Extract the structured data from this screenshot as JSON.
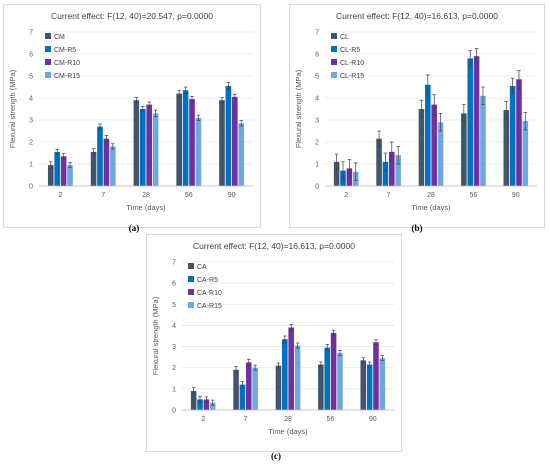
{
  "chart_data": [
    {
      "type": "bar",
      "title": "Current effect: F(12, 40)=20.547, p=0.0000",
      "xlabel": "Time (days)",
      "ylabel": "Flexural strength (MPa)",
      "ylim": [
        0,
        7
      ],
      "yticks": [
        0,
        1,
        2,
        3,
        4,
        5,
        6,
        7
      ],
      "grid": true,
      "legend_position": "top-left",
      "categories": [
        "2",
        "7",
        "28",
        "56",
        "90"
      ],
      "series": [
        {
          "name": "CM",
          "color": "#44546a",
          "values": [
            0.95,
            1.55,
            3.9,
            4.2,
            3.9
          ],
          "errors": [
            0.15,
            0.15,
            0.12,
            0.15,
            0.12
          ]
        },
        {
          "name": "CM-R5",
          "color": "#0070c0",
          "values": [
            1.55,
            2.7,
            3.5,
            4.35,
            4.55
          ],
          "errors": [
            0.12,
            0.12,
            0.12,
            0.15,
            0.15
          ]
        },
        {
          "name": "CM-R10",
          "color": "#7030a0",
          "values": [
            1.35,
            2.15,
            3.7,
            3.95,
            4.05
          ],
          "errors": [
            0.12,
            0.15,
            0.12,
            0.12,
            0.12
          ]
        },
        {
          "name": "CM-R15",
          "color": "#6fa8dc",
          "values": [
            0.95,
            1.8,
            3.3,
            3.1,
            2.85
          ],
          "errors": [
            0.12,
            0.12,
            0.15,
            0.12,
            0.12
          ]
        }
      ],
      "caption": "(a)"
    },
    {
      "type": "bar",
      "title": "Current effect: F(12, 40)=16.613, p=0.0000",
      "xlabel": "Time (days)",
      "ylabel": "Flexural strength (MPa)",
      "ylim": [
        0,
        7
      ],
      "yticks": [
        0,
        1,
        2,
        3,
        4,
        5,
        6,
        7
      ],
      "grid": true,
      "legend_position": "top-left",
      "categories": [
        "2",
        "7",
        "28",
        "56",
        "90"
      ],
      "series": [
        {
          "name": "CL",
          "color": "#44546a",
          "values": [
            1.1,
            2.15,
            3.5,
            3.3,
            3.45
          ],
          "errors": [
            0.35,
            0.35,
            0.4,
            0.4,
            0.4
          ]
        },
        {
          "name": "CL-R5",
          "color": "#0070c0",
          "values": [
            0.7,
            1.1,
            4.6,
            5.8,
            4.55
          ],
          "errors": [
            0.4,
            0.4,
            0.45,
            0.35,
            0.35
          ]
        },
        {
          "name": "CL-R10",
          "color": "#7030a0",
          "values": [
            0.8,
            1.55,
            3.7,
            5.9,
            4.85
          ],
          "errors": [
            0.4,
            0.45,
            0.45,
            0.35,
            0.4
          ]
        },
        {
          "name": "CL-R15",
          "color": "#6fa8dc",
          "values": [
            0.65,
            1.4,
            2.9,
            4.1,
            2.95
          ],
          "errors": [
            0.4,
            0.4,
            0.4,
            0.4,
            0.4
          ]
        }
      ],
      "caption": "(b)"
    },
    {
      "type": "bar",
      "title": "Current effect: F(12, 40)=16.613, p=0.0000",
      "xlabel": "Time (days)",
      "ylabel": "Flexural strength (MPa)",
      "ylim": [
        0,
        7
      ],
      "yticks": [
        0,
        1,
        2,
        3,
        4,
        5,
        6,
        7
      ],
      "grid": true,
      "legend_position": "top-left",
      "categories": [
        "2",
        "7",
        "28",
        "56",
        "90"
      ],
      "series": [
        {
          "name": "CA",
          "color": "#44546a",
          "values": [
            0.9,
            1.9,
            2.1,
            2.15,
            2.35
          ],
          "errors": [
            0.15,
            0.15,
            0.12,
            0.12,
            0.12
          ]
        },
        {
          "name": "CA-R5",
          "color": "#0070c0",
          "values": [
            0.5,
            1.2,
            3.35,
            2.95,
            2.15
          ],
          "errors": [
            0.15,
            0.15,
            0.15,
            0.15,
            0.12
          ]
        },
        {
          "name": "CA-R10",
          "color": "#7030a0",
          "values": [
            0.5,
            2.25,
            3.9,
            3.65,
            3.2
          ],
          "errors": [
            0.12,
            0.15,
            0.15,
            0.12,
            0.12
          ]
        },
        {
          "name": "CA-R15",
          "color": "#6fa8dc",
          "values": [
            0.35,
            2.0,
            3.05,
            2.7,
            2.45
          ],
          "errors": [
            0.12,
            0.12,
            0.12,
            0.12,
            0.12
          ]
        }
      ],
      "caption": "(c)"
    }
  ]
}
